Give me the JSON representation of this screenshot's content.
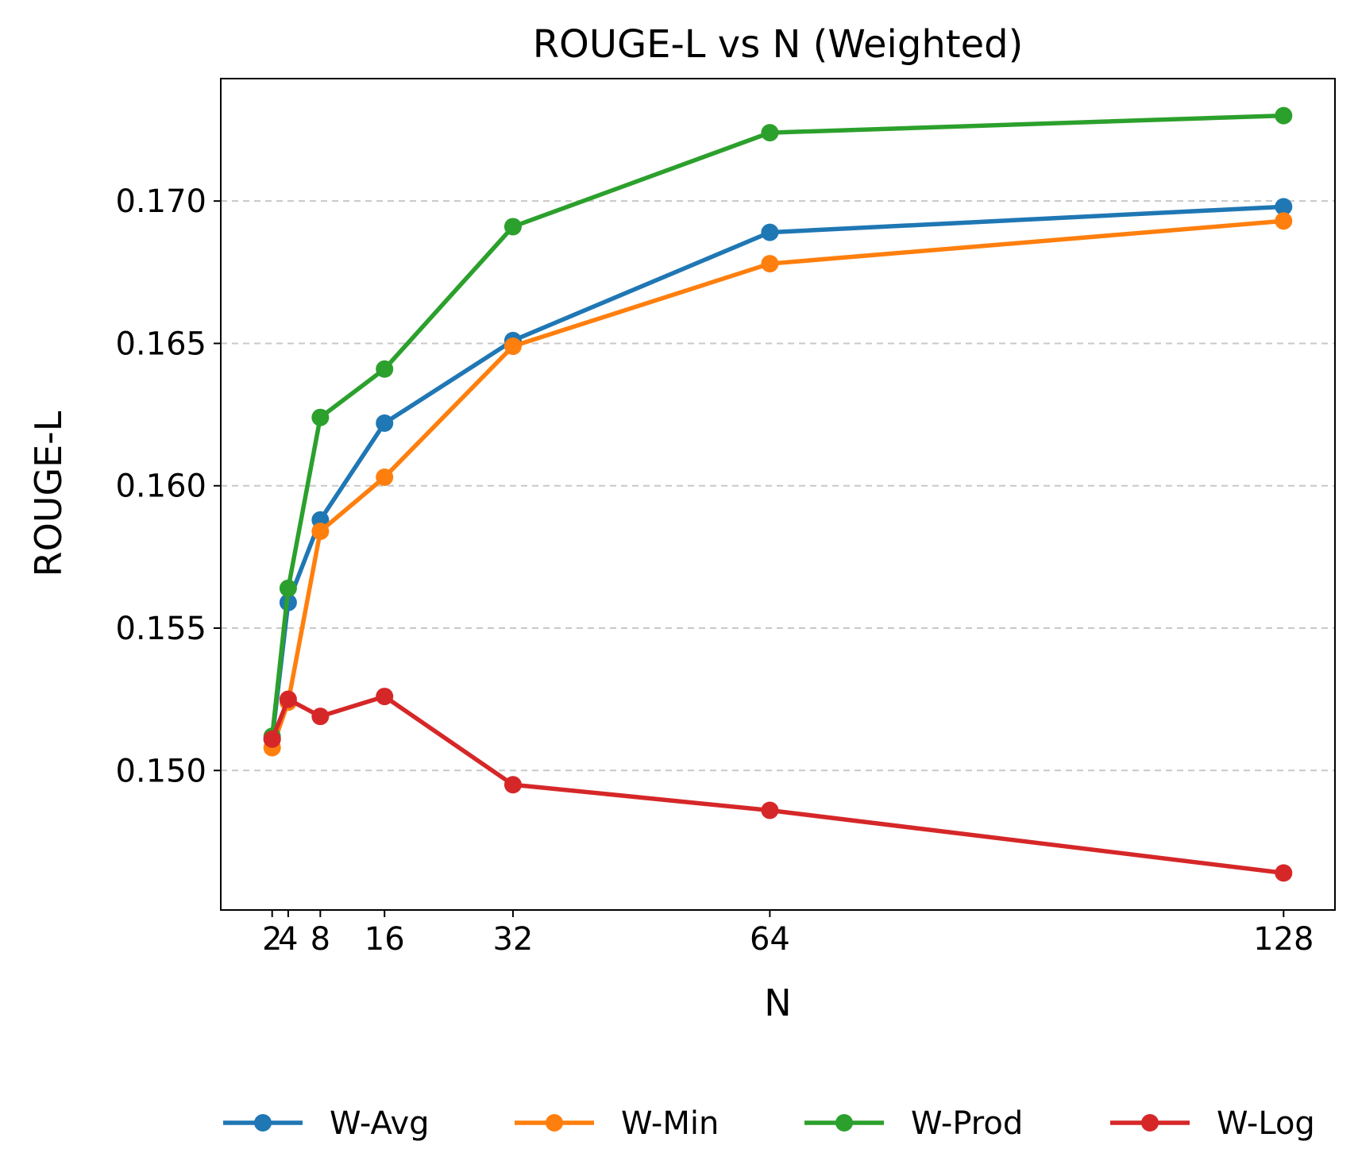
{
  "chart_data": {
    "type": "line",
    "title": "ROUGE-L vs N (Weighted)",
    "xlabel": "N",
    "ylabel": "ROUGE-L",
    "x": [
      2,
      4,
      8,
      16,
      32,
      64,
      128
    ],
    "x_tick_labels": [
      "2",
      "4",
      "8",
      "16",
      "32",
      "64",
      "128"
    ],
    "xlim": [
      -4.4,
      134.4
    ],
    "ylim": [
      0.1451,
      0.1743
    ],
    "y_ticks": [
      0.15,
      0.155,
      0.16,
      0.165,
      0.17
    ],
    "y_tick_labels": [
      "0.150",
      "0.155",
      "0.160",
      "0.165",
      "0.170"
    ],
    "grid": "y dashed",
    "legend_position": "bottom",
    "series": [
      {
        "name": "W-Avg",
        "color": "#1f77b4",
        "values": [
          0.1511,
          0.1559,
          0.1588,
          0.1622,
          0.1651,
          0.1689,
          0.1698
        ]
      },
      {
        "name": "W-Min",
        "color": "#ff7f0e",
        "values": [
          0.1508,
          0.1524,
          0.1584,
          0.1603,
          0.1649,
          0.1678,
          0.1693
        ]
      },
      {
        "name": "W-Prod",
        "color": "#2ca02c",
        "values": [
          0.1512,
          0.1564,
          0.1624,
          0.1641,
          0.1691,
          0.1724,
          0.173
        ]
      },
      {
        "name": "W-Log",
        "color": "#d62728",
        "values": [
          0.1511,
          0.1525,
          0.1519,
          0.1526,
          0.1495,
          0.1486,
          0.1464
        ]
      }
    ]
  }
}
